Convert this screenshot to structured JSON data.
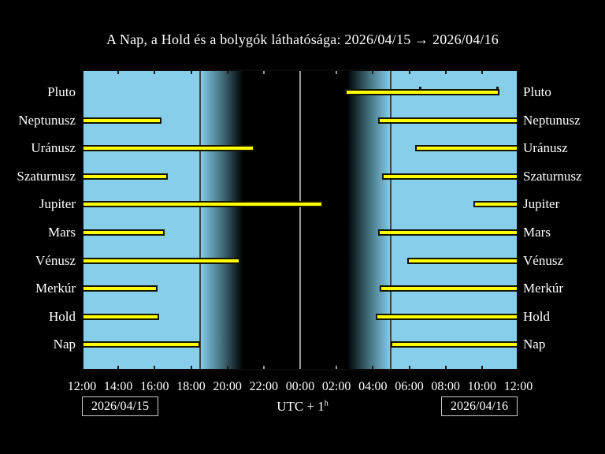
{
  "title": "A Nap, a Hold és a bolygók láthatósága: 2026/04/15 → 2026/04/16",
  "footer": {
    "date_left": "2026/04/15",
    "date_right": "2026/04/16",
    "utc_base": "UTC + 1",
    "utc_sup": "h"
  },
  "colors": {
    "background": "#000000",
    "day_sky": "#87CEEB",
    "night_sky": "#000000",
    "bar_fill": "#ffff00",
    "bar_border": "#141400",
    "midnight_line": "#999999",
    "twilight_line": "#3c4444",
    "tick_dark": "#1a1a1a",
    "tick_light": "#999999",
    "text": "#ffffff",
    "box_border": "#c8c8c8"
  },
  "chart_data": {
    "type": "bar",
    "subtype": "visibility-gantt",
    "title": "A Nap, a Hold és a bolygók láthatósága: 2026/04/15 → 2026/04/16",
    "x_axis": {
      "units": "hours after 12:00 noon (UTC+1), range 0–24 = 12:00 → 12:00 next day",
      "range": [
        0,
        24
      ],
      "tick_step_hours": 2,
      "tick_labels": [
        "12:00",
        "14:00",
        "16:00",
        "18:00",
        "20:00",
        "22:00",
        "00:00",
        "02:00",
        "04:00",
        "06:00",
        "08:00",
        "10:00",
        "12:00"
      ]
    },
    "sun_events": {
      "sunset_hour": 6.49,
      "sunset_time": "18:29",
      "sunrise_hour": 16.99,
      "sunrise_time": "04:59",
      "dark_start_hour": 8.87,
      "dark_end_hour": 14.6,
      "midnight_hour": 12.0
    },
    "rows": [
      {
        "name": "Pluto",
        "evening": null,
        "evening_until": null,
        "morning": [
          14.48,
          22.94
        ],
        "morning_from": "02:29",
        "morning_until": "10:56",
        "markers": [
          18.6,
          22.85
        ]
      },
      {
        "name": "Neptunusz",
        "evening": [
          0,
          4.36
        ],
        "evening_until": "16:22",
        "morning": [
          16.3,
          24
        ],
        "morning_from": "04:18",
        "morning_until": "12:00",
        "markers": []
      },
      {
        "name": "Uránusz",
        "evening": [
          0,
          9.48
        ],
        "evening_until": "21:29",
        "morning": [
          18.34,
          24
        ],
        "morning_from": "06:20",
        "morning_until": "12:00",
        "markers": []
      },
      {
        "name": "Szaturnusz",
        "evening": [
          0,
          4.71
        ],
        "evening_until": "16:43",
        "morning": [
          16.51,
          24
        ],
        "morning_from": "04:31",
        "morning_until": "12:00",
        "markers": []
      },
      {
        "name": "Jupiter",
        "evening": [
          0,
          13.26
        ],
        "evening_until": "01:16",
        "morning": [
          21.51,
          24
        ],
        "morning_from": "09:31",
        "morning_until": "12:00",
        "markers": []
      },
      {
        "name": "Mars",
        "evening": [
          0,
          4.53
        ],
        "evening_until": "16:32",
        "morning": [
          16.3,
          24
        ],
        "morning_from": "04:18",
        "morning_until": "12:00",
        "markers": []
      },
      {
        "name": "Vénusz",
        "evening": [
          0,
          8.7
        ],
        "evening_until": "20:42",
        "morning": [
          17.9,
          24
        ],
        "morning_from": "05:54",
        "morning_until": "12:00",
        "markers": []
      },
      {
        "name": "Merkúr",
        "evening": [
          0,
          4.14
        ],
        "evening_until": "16:08",
        "morning": [
          16.38,
          24
        ],
        "morning_from": "04:23",
        "morning_until": "12:00",
        "markers": []
      },
      {
        "name": "Hold",
        "evening": [
          0,
          4.23
        ],
        "evening_until": "16:14",
        "morning": [
          16.17,
          24
        ],
        "morning_from": "04:10",
        "morning_until": "12:00",
        "markers": []
      },
      {
        "name": "Nap",
        "evening": [
          0,
          6.49
        ],
        "evening_until": "18:29",
        "morning": [
          16.99,
          24
        ],
        "morning_from": "04:59",
        "morning_until": "12:00",
        "markers": []
      }
    ],
    "legend": null,
    "grid": "off"
  }
}
